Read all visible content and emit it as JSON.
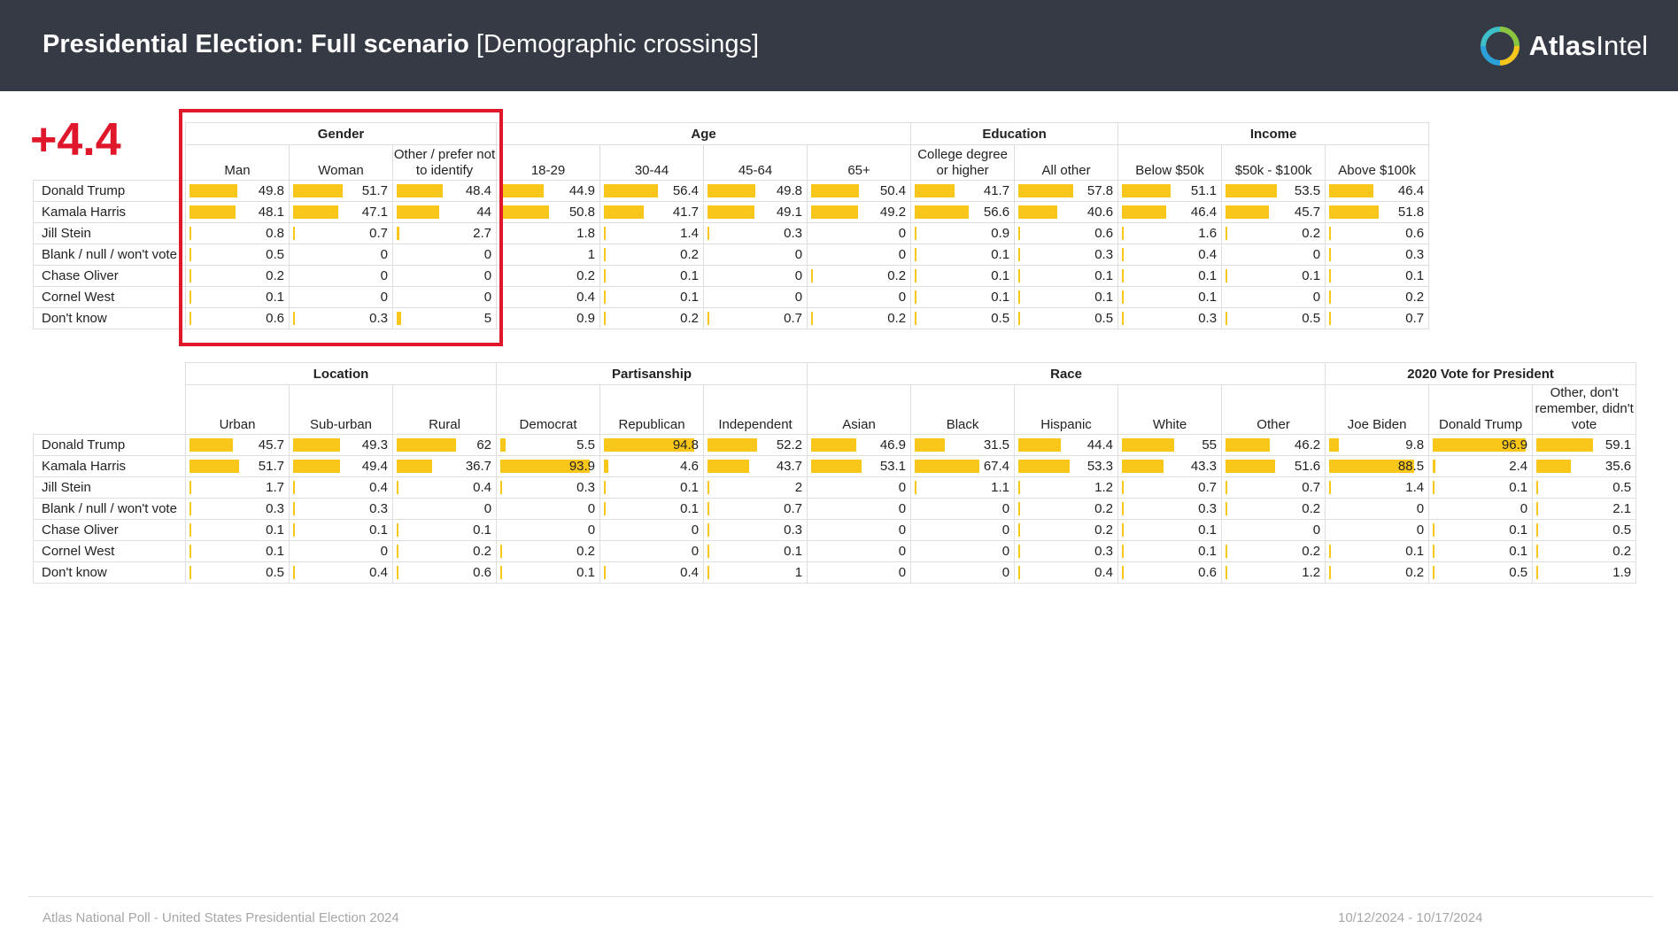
{
  "header": {
    "title_bold": "Presidential Election: Full scenario",
    "title_rest": "[Demographic crossings]",
    "logo_bold": "Atlas",
    "logo_rest": "Intel",
    "logo_icon": "atlasintel-logo-icon"
  },
  "margin_label": "+4.4",
  "colors": {
    "header_bg": "#353a45",
    "bar": "#f8c71a",
    "highlight": "#e0162b"
  },
  "tables": [
    {
      "groups": [
        {
          "label": "Gender",
          "span": 3
        },
        {
          "label": "Age",
          "span": 4
        },
        {
          "label": "Education",
          "span": 2
        },
        {
          "label": "Income",
          "span": 3
        }
      ],
      "columns": [
        "Man",
        "Woman",
        "Other / prefer not to identify",
        "18-29",
        "30-44",
        "45-64",
        "65+",
        "College degree or higher",
        "All other",
        "Below $50k",
        "$50k - $100k",
        "Above $100k"
      ],
      "rows": [
        {
          "label": "Donald Trump",
          "values": [
            49.8,
            51.7,
            48.4,
            44.9,
            56.4,
            49.8,
            50.4,
            41.7,
            57.8,
            51.1,
            53.5,
            46.4
          ]
        },
        {
          "label": "Kamala Harris",
          "values": [
            48.1,
            47.1,
            44,
            50.8,
            41.7,
            49.1,
            49.2,
            56.6,
            40.6,
            46.4,
            45.7,
            51.8
          ]
        },
        {
          "label": "Jill Stein",
          "values": [
            0.8,
            0.7,
            2.7,
            1.8,
            1.4,
            0.3,
            0,
            0.9,
            0.6,
            1.6,
            0.2,
            0.6
          ]
        },
        {
          "label": "Blank / null / won't vote",
          "values": [
            0.5,
            0,
            0,
            1,
            0.2,
            0,
            0,
            0.1,
            0.3,
            0.4,
            0,
            0.3
          ]
        },
        {
          "label": "Chase Oliver",
          "values": [
            0.2,
            0,
            0,
            0.2,
            0.1,
            0,
            0.2,
            0.1,
            0.1,
            0.1,
            0.1,
            0.1
          ]
        },
        {
          "label": "Cornel West",
          "values": [
            0.1,
            0,
            0,
            0.4,
            0.1,
            0,
            0,
            0.1,
            0.1,
            0.1,
            0,
            0.2
          ]
        },
        {
          "label": "Don't know",
          "values": [
            0.6,
            0.3,
            5,
            0.9,
            0.2,
            0.7,
            0.2,
            0.5,
            0.5,
            0.3,
            0.5,
            0.7
          ]
        }
      ]
    },
    {
      "groups": [
        {
          "label": "Location",
          "span": 3
        },
        {
          "label": "Partisanship",
          "span": 3
        },
        {
          "label": "Race",
          "span": 5
        },
        {
          "label": "2020 Vote for President",
          "span": 3
        }
      ],
      "columns": [
        "Urban",
        "Sub-urban",
        "Rural",
        "Democrat",
        "Republican",
        "Independent",
        "Asian",
        "Black",
        "Hispanic",
        "White",
        "Other",
        "Joe Biden",
        "Donald Trump",
        "Other, don't remember, didn't vote"
      ],
      "rows": [
        {
          "label": "Donald Trump",
          "values": [
            45.7,
            49.3,
            62,
            5.5,
            94.8,
            52.2,
            46.9,
            31.5,
            44.4,
            55,
            46.2,
            9.8,
            96.9,
            59.1
          ]
        },
        {
          "label": "Kamala Harris",
          "values": [
            51.7,
            49.4,
            36.7,
            93.9,
            4.6,
            43.7,
            53.1,
            67.4,
            53.3,
            43.3,
            51.6,
            88.5,
            2.4,
            35.6
          ]
        },
        {
          "label": "Jill Stein",
          "values": [
            1.7,
            0.4,
            0.4,
            0.3,
            0.1,
            2,
            0,
            1.1,
            1.2,
            0.7,
            0.7,
            1.4,
            0.1,
            0.5
          ]
        },
        {
          "label": "Blank / null / won't vote",
          "values": [
            0.3,
            0.3,
            0,
            0,
            0.1,
            0.7,
            0,
            0,
            0.2,
            0.3,
            0.2,
            0,
            0,
            2.1
          ]
        },
        {
          "label": "Chase Oliver",
          "values": [
            0.1,
            0.1,
            0.1,
            0,
            0,
            0.3,
            0,
            0,
            0.2,
            0.1,
            0,
            0,
            0.1,
            0.5
          ]
        },
        {
          "label": "Cornel West",
          "values": [
            0.1,
            0,
            0.2,
            0.2,
            0,
            0.1,
            0,
            0,
            0.3,
            0.1,
            0.2,
            0.1,
            0.1,
            0.2
          ]
        },
        {
          "label": "Don't know",
          "values": [
            0.5,
            0.4,
            0.6,
            0.1,
            0.4,
            1,
            0,
            0,
            0.4,
            0.6,
            1.2,
            0.2,
            0.5,
            1.9
          ]
        }
      ]
    }
  ],
  "footer": {
    "left": "Atlas National Poll - United States Presidential Election 2024",
    "right": "10/12/2024 - 10/17/2024"
  }
}
